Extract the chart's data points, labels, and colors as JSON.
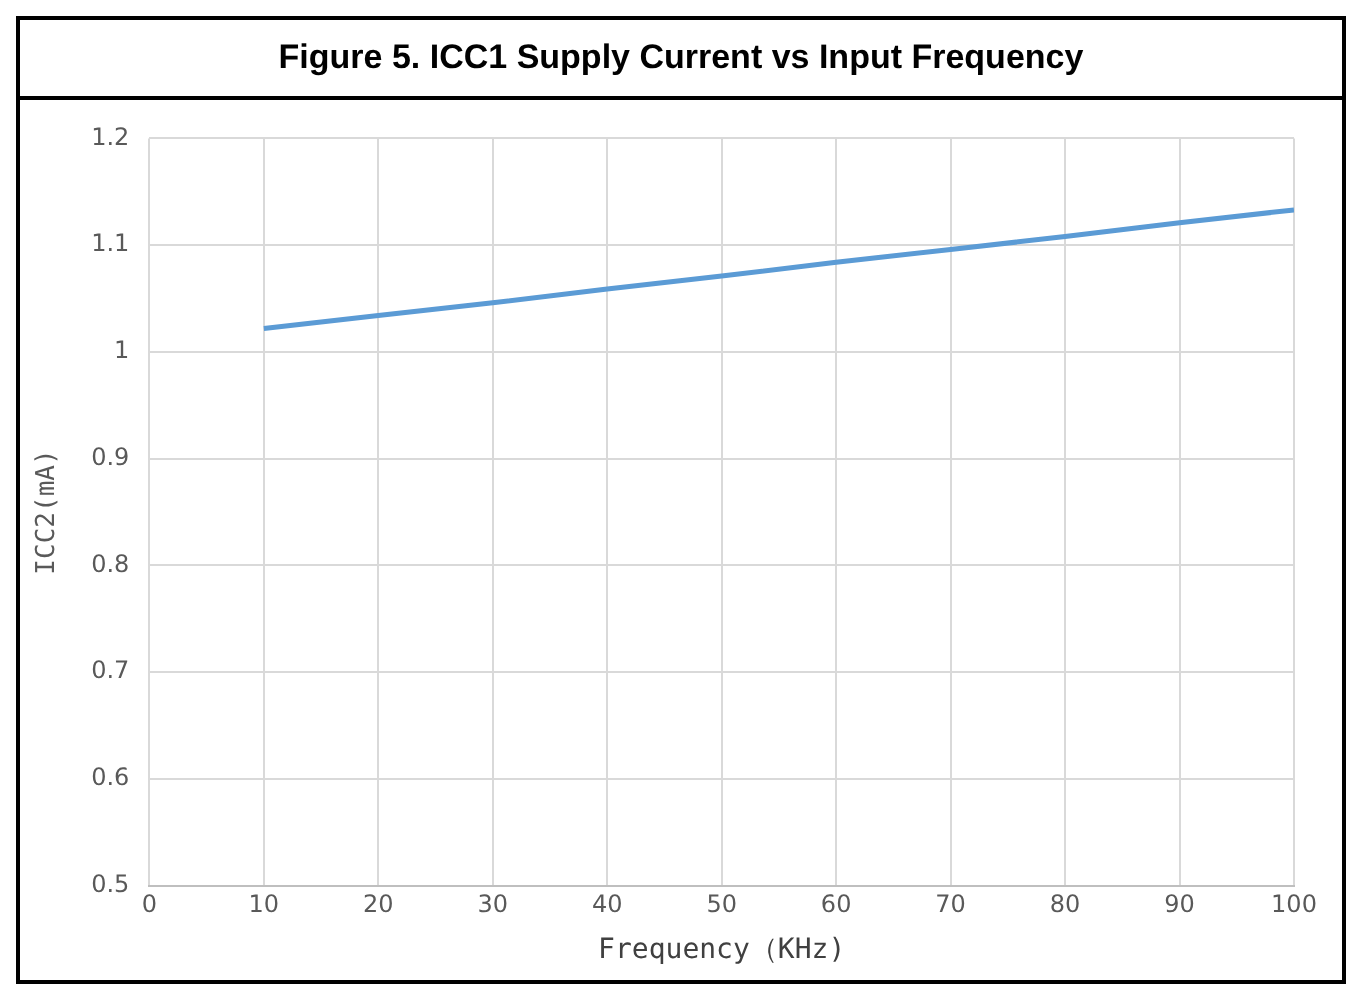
{
  "chart_data": {
    "type": "line",
    "title": "Figure 5. ICC1 Supply Current vs Input Frequency",
    "xlabel": "Frequency（KHz)",
    "ylabel": "ICC2(mA)",
    "x": [
      10,
      20,
      30,
      40,
      50,
      60,
      70,
      80,
      90,
      100
    ],
    "series": [
      {
        "color": "#5b9bd5",
        "values": [
          1.022,
          1.034,
          1.046,
          1.059,
          1.071,
          1.084,
          1.096,
          1.108,
          1.121,
          1.133
        ]
      }
    ],
    "xlim": [
      0,
      100
    ],
    "xticks": [
      0,
      10,
      20,
      30,
      40,
      50,
      60,
      70,
      80,
      90,
      100
    ],
    "ylim": [
      0.5,
      1.2
    ],
    "yticks": [
      0.5,
      0.6,
      0.7,
      0.8,
      0.9,
      1,
      1.1,
      1.2
    ],
    "grid": true,
    "marker": "none",
    "line_style": "solid"
  }
}
